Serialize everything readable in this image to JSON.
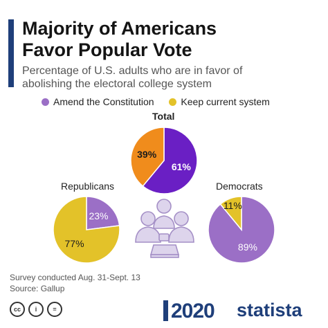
{
  "header": {
    "title": "Majority of Americans Favor Popular Vote",
    "subtitle": "Percentage of U.S. adults who are in favor of abolishing the electoral college system"
  },
  "legend": [
    {
      "label": "Amend the Constitution",
      "color": "#9b6fc6"
    },
    {
      "label": "Keep current system",
      "color": "#e3c229"
    }
  ],
  "chart_data": {
    "type": "pie",
    "series_names": [
      "Amend the Constitution",
      "Keep current system"
    ],
    "pies": [
      {
        "name": "Total",
        "values": [
          61,
          39
        ],
        "labels": [
          "61%",
          "39%"
        ],
        "colors": [
          "#6a1fc4",
          "#f08c1c"
        ]
      },
      {
        "name": "Republicans",
        "values": [
          23,
          77
        ],
        "labels": [
          "23%",
          "77%"
        ],
        "colors": [
          "#9b6fc6",
          "#e3c229"
        ]
      },
      {
        "name": "Democrats",
        "values": [
          89,
          11
        ],
        "labels": [
          "89%",
          "11%"
        ],
        "colors": [
          "#9b6fc6",
          "#e3c229"
        ]
      }
    ]
  },
  "illustration": {
    "icon": "voters-ballot-box-icon",
    "color": "#b8a5d4"
  },
  "footer": {
    "note": "Survey conducted Aug. 31-Sept. 13",
    "source": "Source: Gallup",
    "license_icons": [
      "cc",
      "i",
      "="
    ],
    "badge_year": "2020",
    "brand": "statista"
  }
}
